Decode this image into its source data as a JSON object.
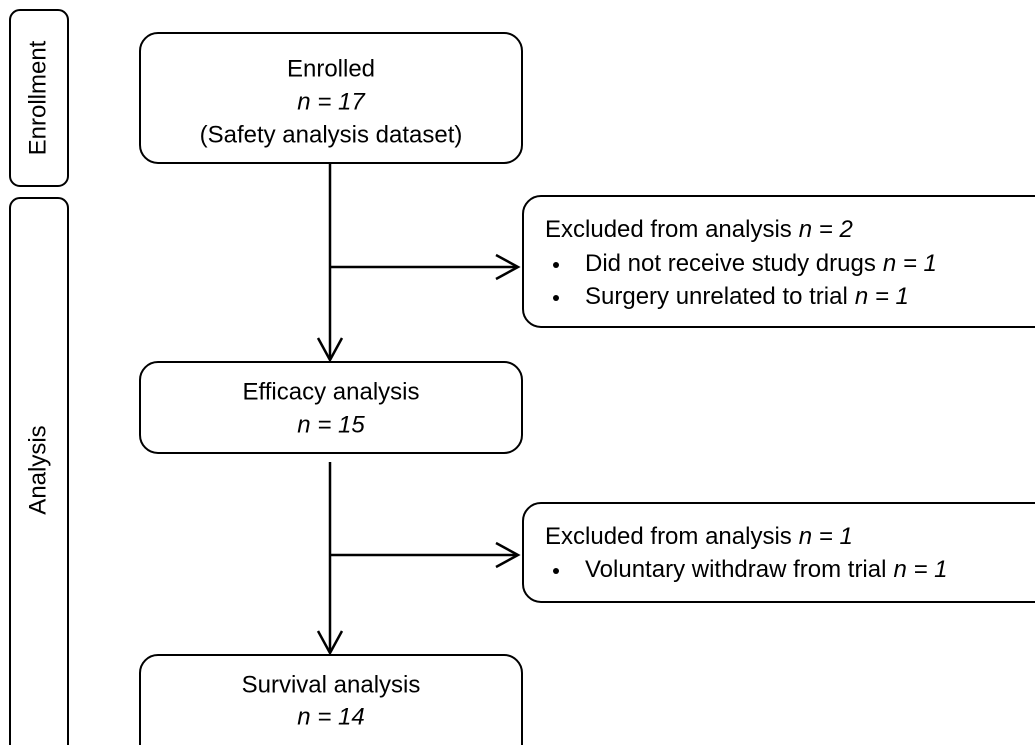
{
  "stages": [
    "Enrollment",
    "Analysis"
  ],
  "nodes": [
    {
      "label": "Enrolled",
      "count": "n = 17",
      "note": "(Safety analysis dataset)"
    },
    {
      "label": "Efficacy analysis",
      "count": "n = 15"
    },
    {
      "label": "Survival analysis",
      "count": "n = 14"
    }
  ],
  "exclusions": [
    {
      "label": "Excluded from analysis",
      "count": "n = 2",
      "reasons": [
        {
          "label": "Did not receive study drugs",
          "count": "n = 1"
        },
        {
          "label": "Surgery unrelated to trial",
          "count": "n = 1"
        }
      ]
    },
    {
      "label": "Excluded from analysis",
      "count": "n = 1",
      "reasons": [
        {
          "label": "Voluntary withdraw from trial",
          "count": "n = 1"
        }
      ]
    }
  ]
}
